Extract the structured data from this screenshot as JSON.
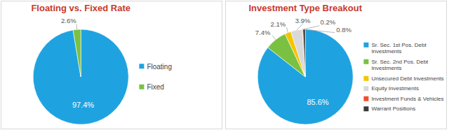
{
  "chart_data": [
    {
      "type": "pie",
      "title": "Floating vs. Fixed Rate",
      "categories": [
        "Floating",
        "Fixed"
      ],
      "values": [
        97.4,
        2.6
      ],
      "value_labels": [
        "97.4%",
        "2.6%"
      ],
      "colors": [
        "#1fa3e0",
        "#7ac142"
      ],
      "data_labels": true,
      "legend": "right"
    },
    {
      "type": "pie",
      "title": "Investment Type Breakout",
      "categories": [
        "Sr. Sec. 1st Pos. Debt Investments",
        "Sr. Sec. 2nd Pos. Debt Investments",
        "Unsecured Debt Investments",
        "Equity Investments",
        "Investment Funds & Vehicles",
        "Warrant Positions"
      ],
      "values": [
        85.6,
        7.4,
        2.1,
        3.9,
        0.2,
        0.8
      ],
      "value_labels": [
        "85.6%",
        "7.4%",
        "2.1%",
        "3.9%",
        "0.2%",
        "0.8%"
      ],
      "colors": [
        "#1fa3e0",
        "#7ac142",
        "#f5c400",
        "#d9d9d9",
        "#f0502a",
        "#3a3a3a"
      ],
      "data_labels": true,
      "legend": "right"
    }
  ]
}
